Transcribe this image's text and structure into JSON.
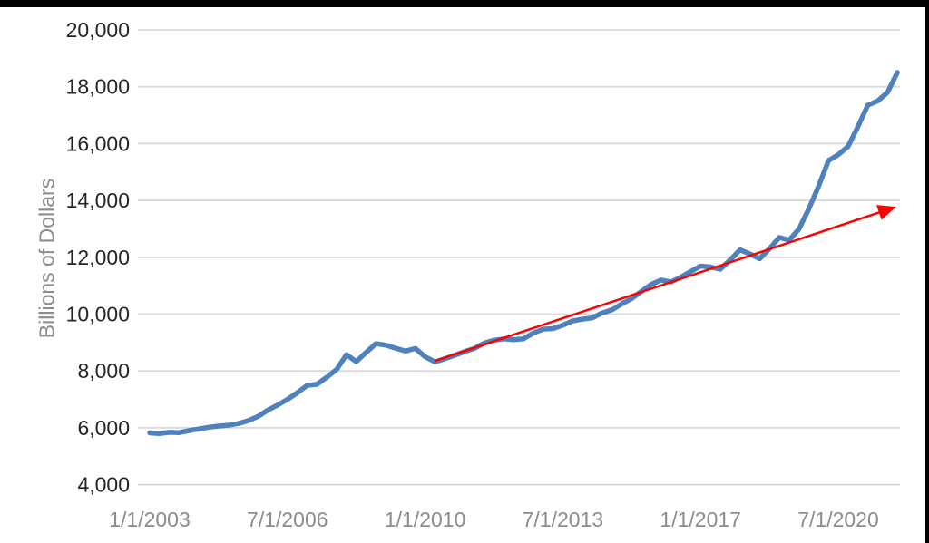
{
  "window": {
    "top_border_color": "#000000",
    "right_border_color": "#000000",
    "background_color": "#FFFFFF"
  },
  "chart_data": {
    "type": "line",
    "title": "",
    "xlabel": "",
    "ylabel": "Billions of Dollars",
    "ylim": [
      4000,
      20000
    ],
    "y_tick_step": 2000,
    "grid": "horizontal",
    "legend": "none",
    "colors": {
      "series": "#4F81BD",
      "trend": "#FF0000",
      "gridline": "#D9D9D9",
      "y_tick_text": "#262626",
      "x_tick_text": "#8C8C8C",
      "axis_title_text": "#8C8C8C"
    },
    "y_ticks": [
      "20,000",
      "18,000",
      "16,000",
      "14,000",
      "12,000",
      "10,000",
      "8,000",
      "6,000",
      "4,000"
    ],
    "x_ticks": [
      {
        "label": "1/1/2003",
        "month": 0
      },
      {
        "label": "7/1/2006",
        "month": 42
      },
      {
        "label": "1/1/2010",
        "month": 84
      },
      {
        "label": "7/1/2013",
        "month": 126
      },
      {
        "label": "1/1/2017",
        "month": 168
      },
      {
        "label": "7/1/2020",
        "month": 210
      }
    ],
    "series": [
      {
        "name": "billions-of-dollars-series",
        "color": "#4F81BD",
        "points": [
          {
            "date": "1/1/2003",
            "value": 5820
          },
          {
            "date": "4/1/2003",
            "value": 5795
          },
          {
            "date": "7/1/2003",
            "value": 5840
          },
          {
            "date": "10/1/2003",
            "value": 5830
          },
          {
            "date": "1/1/2004",
            "value": 5900
          },
          {
            "date": "4/1/2004",
            "value": 5960
          },
          {
            "date": "7/1/2004",
            "value": 6020
          },
          {
            "date": "10/1/2004",
            "value": 6060
          },
          {
            "date": "1/1/2005",
            "value": 6090
          },
          {
            "date": "4/1/2005",
            "value": 6150
          },
          {
            "date": "7/1/2005",
            "value": 6250
          },
          {
            "date": "10/1/2005",
            "value": 6400
          },
          {
            "date": "1/1/2006",
            "value": 6620
          },
          {
            "date": "4/1/2006",
            "value": 6800
          },
          {
            "date": "7/1/2006",
            "value": 7000
          },
          {
            "date": "10/1/2006",
            "value": 7230
          },
          {
            "date": "1/1/2007",
            "value": 7490
          },
          {
            "date": "4/1/2007",
            "value": 7530
          },
          {
            "date": "7/1/2007",
            "value": 7780
          },
          {
            "date": "10/1/2007",
            "value": 8050
          },
          {
            "date": "1/1/2008",
            "value": 8570
          },
          {
            "date": "4/1/2008",
            "value": 8330
          },
          {
            "date": "7/1/2008",
            "value": 8650
          },
          {
            "date": "10/1/2008",
            "value": 8960
          },
          {
            "date": "1/1/2009",
            "value": 8910
          },
          {
            "date": "4/1/2009",
            "value": 8800
          },
          {
            "date": "7/1/2009",
            "value": 8700
          },
          {
            "date": "10/1/2009",
            "value": 8790
          },
          {
            "date": "1/1/2010",
            "value": 8500
          },
          {
            "date": "4/1/2010",
            "value": 8320
          },
          {
            "date": "7/1/2010",
            "value": 8430
          },
          {
            "date": "10/1/2010",
            "value": 8550
          },
          {
            "date": "1/1/2011",
            "value": 8680
          },
          {
            "date": "4/1/2011",
            "value": 8790
          },
          {
            "date": "7/1/2011",
            "value": 8980
          },
          {
            "date": "10/1/2011",
            "value": 9080
          },
          {
            "date": "1/1/2012",
            "value": 9130
          },
          {
            "date": "4/1/2012",
            "value": 9100
          },
          {
            "date": "7/1/2012",
            "value": 9130
          },
          {
            "date": "10/1/2012",
            "value": 9330
          },
          {
            "date": "1/1/2013",
            "value": 9470
          },
          {
            "date": "4/1/2013",
            "value": 9490
          },
          {
            "date": "7/1/2013",
            "value": 9610
          },
          {
            "date": "10/1/2013",
            "value": 9760
          },
          {
            "date": "1/1/2014",
            "value": 9820
          },
          {
            "date": "4/1/2014",
            "value": 9870
          },
          {
            "date": "7/1/2014",
            "value": 10040
          },
          {
            "date": "10/1/2014",
            "value": 10150
          },
          {
            "date": "1/1/2015",
            "value": 10360
          },
          {
            "date": "4/1/2015",
            "value": 10550
          },
          {
            "date": "7/1/2015",
            "value": 10800
          },
          {
            "date": "10/1/2015",
            "value": 11050
          },
          {
            "date": "1/1/2016",
            "value": 11200
          },
          {
            "date": "4/1/2016",
            "value": 11130
          },
          {
            "date": "7/1/2016",
            "value": 11300
          },
          {
            "date": "10/1/2016",
            "value": 11500
          },
          {
            "date": "1/1/2017",
            "value": 11690
          },
          {
            "date": "4/1/2017",
            "value": 11660
          },
          {
            "date": "7/1/2017",
            "value": 11580
          },
          {
            "date": "10/1/2017",
            "value": 11900
          },
          {
            "date": "1/1/2018",
            "value": 12260
          },
          {
            "date": "4/1/2018",
            "value": 12120
          },
          {
            "date": "7/1/2018",
            "value": 11950
          },
          {
            "date": "10/1/2018",
            "value": 12300
          },
          {
            "date": "1/1/2019",
            "value": 12700
          },
          {
            "date": "4/1/2019",
            "value": 12600
          },
          {
            "date": "7/1/2019",
            "value": 12990
          },
          {
            "date": "10/1/2019",
            "value": 13700
          },
          {
            "date": "1/1/2020",
            "value": 14500
          },
          {
            "date": "4/1/2020",
            "value": 15400
          },
          {
            "date": "7/1/2020",
            "value": 15610
          },
          {
            "date": "10/1/2020",
            "value": 15900
          },
          {
            "date": "1/1/2021",
            "value": 16600
          },
          {
            "date": "4/1/2021",
            "value": 17350
          },
          {
            "date": "7/1/2021",
            "value": 17500
          },
          {
            "date": "10/1/2021",
            "value": 17800
          },
          {
            "date": "1/1/2022",
            "value": 18500
          }
        ]
      }
    ],
    "trend_arrow": {
      "color": "#FF0000",
      "start": {
        "date": "4/1/2010",
        "value": 8350
      },
      "end": {
        "date": "12/1/2021",
        "value": 13750
      }
    }
  }
}
